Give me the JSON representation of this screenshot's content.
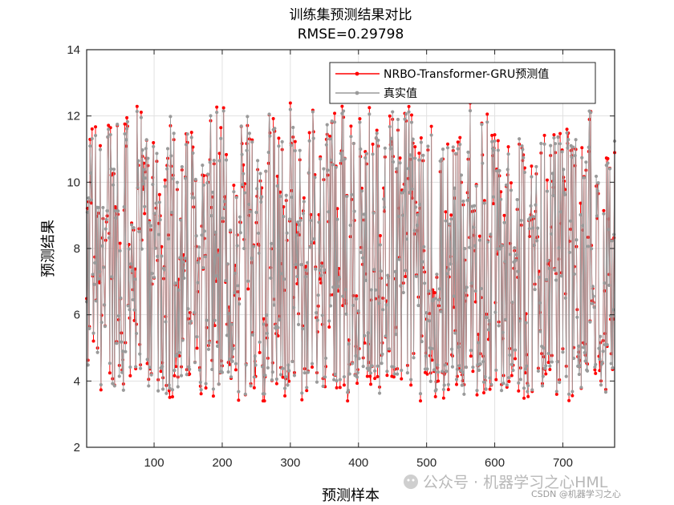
{
  "chart_data": {
    "type": "line",
    "title": "训练集预测结果对比",
    "subtitle": "RMSE=0.29798",
    "xlabel": "预测样本",
    "ylabel": "预测结果",
    "xlim": [
      1,
      776
    ],
    "ylim": [
      2,
      14
    ],
    "xticks": [
      100,
      200,
      300,
      400,
      500,
      600,
      700
    ],
    "yticks": [
      2,
      4,
      6,
      8,
      10,
      12,
      14
    ],
    "grid": true,
    "legend_position": "top-right",
    "series": [
      {
        "name": "NRBO-Transformer-GRU预测值",
        "color": "#ff0000",
        "marker": "dot"
      },
      {
        "name": "真实值",
        "color": "#9a9a9a",
        "marker": "dot"
      }
    ],
    "n_points": 776,
    "value_range": [
      3.4,
      12.9
    ]
  },
  "watermark": {
    "main": "公众号 · 机器学习之心HML",
    "small": "CSDN @机器学习之心"
  },
  "colors": {
    "predicted": "#ff0000",
    "actual": "#9a9a9a",
    "grid": "#e1e1e1",
    "axis": "#262626"
  }
}
